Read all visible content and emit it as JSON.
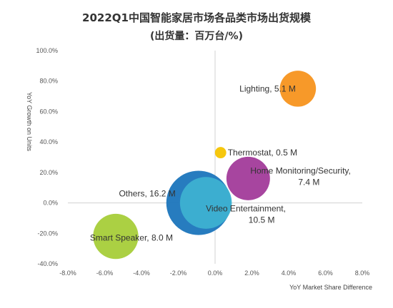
{
  "title": "2022Q1中国智能家居市场各品类市场出货规模",
  "subtitle": "(出货量：百万台/%)",
  "chart_data": {
    "type": "scatter",
    "title": "2022Q1中国智能家居市场各品类市场出货规模",
    "subtitle": "(出货量：百万台/%)",
    "xlabel": "YoY Market Share Difference",
    "ylabel": "YoY Growth on Units",
    "xlim": [
      -8,
      8
    ],
    "ylim": [
      -40,
      100
    ],
    "x_ticks": [
      "-8.0%",
      "-6.0%",
      "-4.0%",
      "-2.0%",
      "0.0%",
      "2.0%",
      "4.0%",
      "6.0%",
      "8.0%"
    ],
    "y_ticks": [
      "-40.0%",
      "-20.0%",
      "0.0%",
      "20.0%",
      "40.0%",
      "60.0%",
      "80.0%",
      "100.0%"
    ],
    "grid": false,
    "points": [
      {
        "label": "Lighting, 5.1 M",
        "x": 4.5,
        "y": 75,
        "size": 5.1,
        "color": "#F7941D"
      },
      {
        "label": "Thermostat, 0.5 M",
        "x": 0.3,
        "y": 33,
        "size": 0.5,
        "color": "#F5C400"
      },
      {
        "label": "Home Monitoring/Security,\n7.4 M",
        "x": 1.8,
        "y": 16,
        "size": 7.4,
        "color": "#A23B9A"
      },
      {
        "label": "Others, 16.2 M",
        "x": -0.9,
        "y": 0,
        "size": 16.2,
        "color": "#1B75BC"
      },
      {
        "label": "Video Entertainment,\n10.5 M",
        "x": -0.5,
        "y": 0,
        "size": 10.5,
        "color": "#3DB1D1"
      },
      {
        "label": "Smart Speaker, 8.0 M",
        "x": -5.4,
        "y": -22,
        "size": 8.0,
        "color": "#A6CE39"
      }
    ]
  }
}
